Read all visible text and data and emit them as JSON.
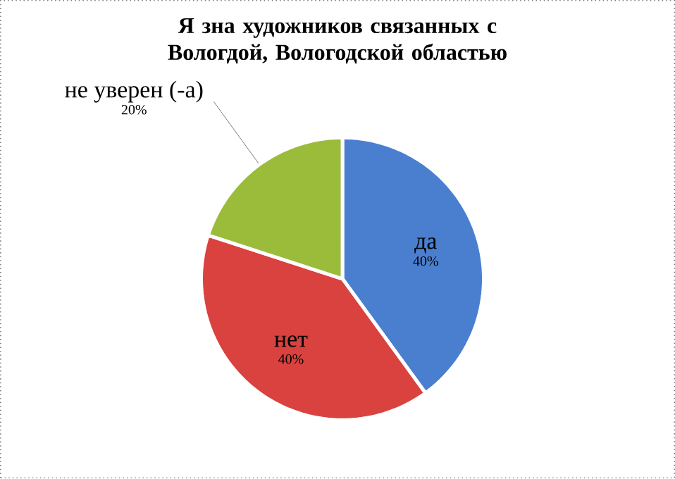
{
  "chart_data": {
    "type": "pie",
    "title": "Я зна  художников связанных  с Вологдой, Вологодской областью",
    "categories": [
      "да",
      "нет",
      "не уверен (-а)"
    ],
    "values": [
      40,
      40,
      20
    ],
    "value_labels": [
      "40%",
      "40%",
      "20%"
    ],
    "colors": [
      "#4a7fd0",
      "#d9423e",
      "#9bbb3b"
    ]
  }
}
